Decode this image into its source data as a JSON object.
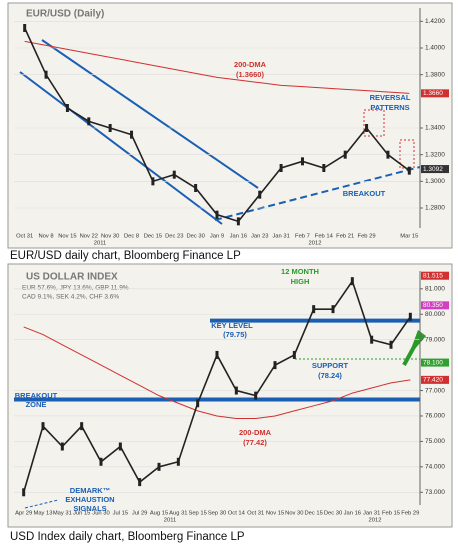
{
  "chart_data": [
    {
      "type": "line",
      "title": "EUR/USD (Daily)",
      "caption": "EUR/USD daily chart, Bloomberg Finance LP",
      "categories": [
        "Oct 31",
        "Nov 8",
        "Nov 15",
        "Nov 22",
        "Nov 30",
        "Dec 8",
        "Dec 15",
        "Dec 23",
        "Dec 30",
        "Jan 9",
        "Jan 16",
        "Jan 23",
        "Jan 31",
        "Feb 7",
        "Feb 14",
        "Feb 21",
        "Feb 29",
        null,
        "Mar 15"
      ],
      "years": [
        "2011",
        "2012"
      ],
      "values": [
        1.415,
        1.38,
        1.355,
        1.345,
        1.34,
        1.335,
        1.3,
        1.305,
        1.295,
        1.275,
        1.27,
        1.29,
        1.31,
        1.315,
        1.31,
        1.32,
        1.34,
        1.32,
        1.308
      ],
      "color": "#222222",
      "dma_values": [
        1.405,
        1.402,
        1.399,
        1.396,
        1.393,
        1.39,
        1.387,
        1.384,
        1.381,
        1.378,
        1.376,
        1.374,
        1.372,
        1.371,
        1.37,
        1.369,
        1.368,
        1.367,
        1.366
      ],
      "dma_color": "#d03030",
      "ylim": [
        1.265,
        1.43
      ],
      "yticks": [
        {
          "value": 1.28,
          "label": "1.2800"
        },
        {
          "value": 1.3,
          "label": "1.3000"
        },
        {
          "value": 1.32,
          "label": "1.3200"
        },
        {
          "value": 1.34,
          "label": "1.3400"
        },
        {
          "value": 1.38,
          "label": "1.3800"
        },
        {
          "value": 1.4,
          "label": "1.4000"
        },
        {
          "value": 1.42,
          "label": "1.4200"
        }
      ],
      "price_tags": [
        {
          "value": 1.366,
          "label": "1.3660",
          "color": "#d03030"
        },
        {
          "value": 1.3092,
          "label": "1.3092",
          "color": "#333333"
        }
      ],
      "annotations": [
        {
          "text": "200-DMA",
          "color": "#d03030"
        },
        {
          "text": "(1.3660)",
          "color": "#d03030"
        },
        {
          "text": "REVERSAL",
          "color": "#1a5fb4"
        },
        {
          "text": "PATTERNS",
          "color": "#1a5fb4"
        },
        {
          "text": "BREAKOUT",
          "color": "#1a5fb4"
        }
      ]
    },
    {
      "type": "line",
      "title": "US DOLLAR INDEX",
      "caption": "USD Index daily chart, Bloomberg Finance LP",
      "weights": [
        "EUR 57.6%, JPY 13.6%, GBP 11.9%",
        "CAD 9.1%, SEK 4.2%, CHF 3.6%"
      ],
      "categories": [
        "Apr 29",
        "May 13",
        "May 31",
        "Jun 15",
        "Jun 30",
        "Jul 15",
        "Jul 29",
        "Aug 15",
        "Aug 31",
        "Sep 15",
        "Sep 30",
        "Oct 14",
        "Oct 31",
        "Nov 15",
        "Nov 30",
        "Dec 15",
        "Dec 30",
        "Jan 16",
        "Jan 31",
        "Feb 15",
        "Feb 29"
      ],
      "years": [
        "2011",
        "2012"
      ],
      "values": [
        73.0,
        75.6,
        74.8,
        75.6,
        74.2,
        74.8,
        73.4,
        74.0,
        74.2,
        76.5,
        78.4,
        77.0,
        76.8,
        78.0,
        78.4,
        80.2,
        80.2,
        81.3,
        79.0,
        78.8,
        79.9
      ],
      "color": "#222222",
      "dma_values": [
        79.5,
        79.2,
        78.8,
        78.4,
        78.0,
        77.6,
        77.2,
        76.8,
        76.5,
        76.2,
        76.0,
        75.9,
        75.9,
        76.0,
        76.2,
        76.4,
        76.6,
        76.9,
        77.1,
        77.3,
        77.42
      ],
      "dma_color": "#d03030",
      "key_level": 79.75,
      "support_level": 78.24,
      "breakout_level": 76.65,
      "ylim": [
        72.5,
        81.7
      ],
      "yticks": [
        {
          "value": 73,
          "label": "73.000"
        },
        {
          "value": 74,
          "label": "74.000"
        },
        {
          "value": 75,
          "label": "75.000"
        },
        {
          "value": 76,
          "label": "76.000"
        },
        {
          "value": 77,
          "label": "77.000"
        },
        {
          "value": 79,
          "label": "79.000"
        },
        {
          "value": 80,
          "label": "80.000"
        },
        {
          "value": 81,
          "label": "81.000"
        }
      ],
      "price_tags": [
        {
          "value": 81.515,
          "label": "81.515",
          "color": "#d03030"
        },
        {
          "value": 80.35,
          "label": "80.350",
          "color": "#d040c0"
        },
        {
          "value": 78.1,
          "label": "78.100",
          "color": "#30a030"
        },
        {
          "value": 77.42,
          "label": "77.420",
          "color": "#d03030"
        }
      ],
      "annotations": [
        {
          "text": "12 MONTH",
          "color": "#2a9a2a"
        },
        {
          "text": "HIGH",
          "color": "#2a9a2a"
        },
        {
          "text": "KEY LEVEL",
          "color": "#1a5fb4"
        },
        {
          "text": "(79.75)",
          "color": "#1a5fb4"
        },
        {
          "text": "SUPPORT",
          "color": "#1a5fb4"
        },
        {
          "text": "(78.24)",
          "color": "#1a5fb4"
        },
        {
          "text": "BREAKOUT",
          "color": "#1a5fb4"
        },
        {
          "text": "ZONE",
          "color": "#1a5fb4"
        },
        {
          "text": "200-DMA",
          "color": "#d03030"
        },
        {
          "text": "(77.42)",
          "color": "#d03030"
        },
        {
          "text": "DEMARK™",
          "color": "#1a5fb4"
        },
        {
          "text": "EXHAUSTION",
          "color": "#1a5fb4"
        },
        {
          "text": "SIGNALS",
          "color": "#1a5fb4"
        }
      ]
    }
  ]
}
